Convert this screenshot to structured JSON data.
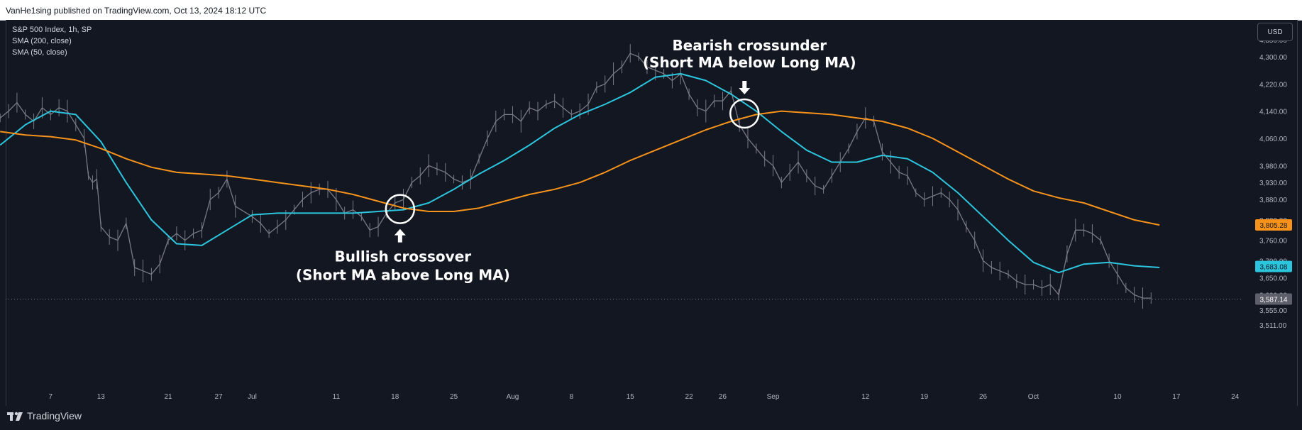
{
  "header": {
    "published": "VanHe1sing published on TradingView.com, Oct 13, 2024 18:12 UTC"
  },
  "legend": {
    "symbol": "S&P 500 Index, 1h, SP",
    "sma_long": "SMA (200, close)",
    "sma_short": "SMA (50, close)"
  },
  "currency_button": "USD",
  "brand": {
    "logo_icon": "tradingview-logo-icon",
    "name": "TradingView"
  },
  "annotations": {
    "bullish_line1": "Bullish crossover",
    "bullish_line2": "(Short MA above Long MA)",
    "bearish_line1": "Bearish crossunder",
    "bearish_line2": "(Short MA below Long MA)"
  },
  "chart_data": {
    "type": "line",
    "y_axis_side": "right",
    "y_ticks": [
      4350,
      4300,
      4220,
      4140,
      4060,
      3980,
      3930,
      3880,
      3820,
      3760,
      3700,
      3650,
      3600,
      3555,
      3511
    ],
    "y_tick_labels": [
      "4,350.00",
      "4,300.00",
      "4,220.00",
      "4,140.00",
      "4,060.00",
      "3,980.00",
      "3,930.00",
      "3,880.00",
      "3,820.00",
      "3,760.00",
      "3,700.00",
      "3,650.00",
      "3,600.00",
      "3,555.00",
      "3,511.00"
    ],
    "x_ticks": [
      {
        "d": 7,
        "label": "7"
      },
      {
        "d": 13,
        "label": "13"
      },
      {
        "d": 21,
        "label": "21"
      },
      {
        "d": 27,
        "label": "27"
      },
      {
        "d": 31,
        "label": "Jul"
      },
      {
        "d": 41,
        "label": "11"
      },
      {
        "d": 48,
        "label": "18"
      },
      {
        "d": 55,
        "label": "25"
      },
      {
        "d": 62,
        "label": "Aug"
      },
      {
        "d": 69,
        "label": "8"
      },
      {
        "d": 76,
        "label": "15"
      },
      {
        "d": 83,
        "label": "22"
      },
      {
        "d": 87,
        "label": "26"
      },
      {
        "d": 93,
        "label": "Sep"
      },
      {
        "d": 104,
        "label": "12"
      },
      {
        "d": 111,
        "label": "19"
      },
      {
        "d": 118,
        "label": "26"
      },
      {
        "d": 124,
        "label": "Oct"
      },
      {
        "d": 134,
        "label": "10"
      },
      {
        "d": 141,
        "label": "17"
      },
      {
        "d": 148,
        "label": "24"
      }
    ],
    "price_series": {
      "name": "S&P 500 Index, 1h, SP",
      "color": "#b2b5be",
      "points": [
        [
          1,
          4120
        ],
        [
          2,
          4140
        ],
        [
          3,
          4165
        ],
        [
          4,
          4130
        ],
        [
          5,
          4110
        ],
        [
          6,
          4150
        ],
        [
          7,
          4130
        ],
        [
          8,
          4150
        ],
        [
          9,
          4140
        ],
        [
          10,
          4100
        ],
        [
          11,
          4060
        ],
        [
          11.5,
          3950
        ],
        [
          12,
          3930
        ],
        [
          12.5,
          3940
        ],
        [
          13,
          3800
        ],
        [
          14,
          3770
        ],
        [
          15,
          3760
        ],
        [
          16,
          3810
        ],
        [
          17,
          3680
        ],
        [
          18,
          3670
        ],
        [
          19,
          3660
        ],
        [
          20,
          3690
        ],
        [
          21,
          3760
        ],
        [
          22,
          3780
        ],
        [
          23,
          3760
        ],
        [
          24,
          3780
        ],
        [
          25,
          3790
        ],
        [
          26,
          3880
        ],
        [
          27,
          3900
        ],
        [
          28,
          3940
        ],
        [
          29,
          3860
        ],
        [
          31,
          3830
        ],
        [
          32,
          3810
        ],
        [
          33,
          3780
        ],
        [
          34,
          3800
        ],
        [
          35,
          3820
        ],
        [
          36,
          3850
        ],
        [
          37,
          3880
        ],
        [
          38,
          3900
        ],
        [
          39,
          3910
        ],
        [
          40,
          3910
        ],
        [
          41,
          3880
        ],
        [
          42,
          3840
        ],
        [
          43,
          3850
        ],
        [
          44,
          3830
        ],
        [
          45,
          3790
        ],
        [
          46,
          3800
        ],
        [
          47,
          3840
        ],
        [
          48,
          3870
        ],
        [
          49,
          3880
        ],
        [
          50,
          3930
        ],
        [
          51,
          3950
        ],
        [
          52,
          3980
        ],
        [
          53,
          3970
        ],
        [
          54,
          3960
        ],
        [
          55,
          3940
        ],
        [
          56,
          3930
        ],
        [
          57,
          3940
        ],
        [
          58,
          4000
        ],
        [
          59,
          4060
        ],
        [
          60,
          4110
        ],
        [
          61,
          4130
        ],
        [
          62,
          4130
        ],
        [
          63,
          4110
        ],
        [
          64,
          4150
        ],
        [
          65,
          4140
        ],
        [
          66,
          4160
        ],
        [
          67,
          4170
        ],
        [
          68,
          4150
        ],
        [
          69,
          4130
        ],
        [
          70,
          4140
        ],
        [
          71,
          4160
        ],
        [
          72,
          4210
        ],
        [
          73,
          4220
        ],
        [
          74,
          4250
        ],
        [
          75,
          4270
        ],
        [
          76,
          4310
        ],
        [
          77,
          4300
        ],
        [
          78,
          4270
        ],
        [
          79,
          4260
        ],
        [
          80,
          4250
        ],
        [
          81,
          4230
        ],
        [
          82,
          4250
        ],
        [
          83,
          4190
        ],
        [
          84,
          4150
        ],
        [
          85,
          4140
        ],
        [
          86,
          4170
        ],
        [
          87,
          4170
        ],
        [
          88,
          4200
        ],
        [
          89,
          4100
        ],
        [
          90,
          4060
        ],
        [
          91,
          4030
        ],
        [
          92,
          4000
        ],
        [
          93,
          3980
        ],
        [
          94,
          3930
        ],
        [
          95,
          3960
        ],
        [
          96,
          3990
        ],
        [
          97,
          3950
        ],
        [
          98,
          3920
        ],
        [
          99,
          3910
        ],
        [
          100,
          3950
        ],
        [
          101,
          3990
        ],
        [
          102,
          4030
        ],
        [
          103,
          4080
        ],
        [
          104,
          4120
        ],
        [
          105,
          4110
        ],
        [
          106,
          4020
        ],
        [
          107,
          3990
        ],
        [
          108,
          3960
        ],
        [
          109,
          3950
        ],
        [
          110,
          3900
        ],
        [
          111,
          3880
        ],
        [
          112,
          3890
        ],
        [
          113,
          3900
        ],
        [
          114,
          3880
        ],
        [
          115,
          3850
        ],
        [
          116,
          3800
        ],
        [
          117,
          3760
        ],
        [
          118,
          3700
        ],
        [
          119,
          3680
        ],
        [
          120,
          3670
        ],
        [
          121,
          3660
        ],
        [
          122,
          3640
        ],
        [
          123,
          3630
        ],
        [
          124,
          3630
        ],
        [
          125,
          3620
        ],
        [
          126,
          3630
        ],
        [
          127,
          3600
        ],
        [
          128,
          3720
        ],
        [
          129,
          3790
        ],
        [
          130,
          3790
        ],
        [
          131,
          3780
        ],
        [
          132,
          3760
        ],
        [
          133,
          3700
        ],
        [
          134,
          3660
        ],
        [
          135,
          3620
        ],
        [
          136,
          3600
        ],
        [
          137,
          3590
        ],
        [
          138,
          3590
        ]
      ]
    },
    "series": [
      {
        "name": "SMA (50, close)",
        "color": "#2bc6de",
        "last_value": 3683.08,
        "points": [
          [
            1,
            4040
          ],
          [
            4,
            4100
          ],
          [
            7,
            4140
          ],
          [
            10,
            4130
          ],
          [
            13,
            4050
          ],
          [
            16,
            3930
          ],
          [
            19,
            3820
          ],
          [
            22,
            3750
          ],
          [
            25,
            3745
          ],
          [
            28,
            3790
          ],
          [
            31,
            3835
          ],
          [
            34,
            3840
          ],
          [
            37,
            3840
          ],
          [
            40,
            3840
          ],
          [
            43,
            3840
          ],
          [
            46,
            3845
          ],
          [
            49,
            3850
          ],
          [
            52,
            3870
          ],
          [
            55,
            3910
          ],
          [
            58,
            3955
          ],
          [
            61,
            3995
          ],
          [
            64,
            4040
          ],
          [
            67,
            4090
          ],
          [
            70,
            4130
          ],
          [
            73,
            4160
          ],
          [
            76,
            4195
          ],
          [
            79,
            4240
          ],
          [
            82,
            4250
          ],
          [
            85,
            4230
          ],
          [
            88,
            4190
          ],
          [
            91,
            4140
          ],
          [
            94,
            4080
          ],
          [
            97,
            4025
          ],
          [
            100,
            3990
          ],
          [
            103,
            3990
          ],
          [
            106,
            4010
          ],
          [
            109,
            4000
          ],
          [
            112,
            3960
          ],
          [
            115,
            3900
          ],
          [
            118,
            3830
          ],
          [
            121,
            3760
          ],
          [
            124,
            3695
          ],
          [
            127,
            3665
          ],
          [
            130,
            3690
          ],
          [
            133,
            3695
          ],
          [
            136,
            3685
          ],
          [
            139,
            3680
          ]
        ]
      },
      {
        "name": "SMA (200, close)",
        "color": "#f7931a",
        "last_value": 3805.28,
        "points": [
          [
            1,
            4080
          ],
          [
            4,
            4070
          ],
          [
            7,
            4065
          ],
          [
            10,
            4055
          ],
          [
            13,
            4030
          ],
          [
            16,
            4000
          ],
          [
            19,
            3975
          ],
          [
            22,
            3960
          ],
          [
            25,
            3955
          ],
          [
            28,
            3950
          ],
          [
            31,
            3940
          ],
          [
            34,
            3930
          ],
          [
            37,
            3920
          ],
          [
            40,
            3910
          ],
          [
            43,
            3895
          ],
          [
            46,
            3875
          ],
          [
            49,
            3855
          ],
          [
            52,
            3845
          ],
          [
            55,
            3845
          ],
          [
            58,
            3855
          ],
          [
            61,
            3875
          ],
          [
            64,
            3895
          ],
          [
            67,
            3910
          ],
          [
            70,
            3930
          ],
          [
            73,
            3960
          ],
          [
            76,
            3995
          ],
          [
            79,
            4025
          ],
          [
            82,
            4055
          ],
          [
            85,
            4085
          ],
          [
            88,
            4110
          ],
          [
            91,
            4130
          ],
          [
            94,
            4140
          ],
          [
            97,
            4135
          ],
          [
            100,
            4130
          ],
          [
            103,
            4120
          ],
          [
            106,
            4110
          ],
          [
            109,
            4090
          ],
          [
            112,
            4060
          ],
          [
            115,
            4020
          ],
          [
            118,
            3980
          ],
          [
            121,
            3940
          ],
          [
            124,
            3905
          ],
          [
            127,
            3885
          ],
          [
            130,
            3870
          ],
          [
            133,
            3845
          ],
          [
            136,
            3820
          ],
          [
            139,
            3805
          ]
        ]
      }
    ],
    "last_price": 3587.14,
    "last_labels": {
      "long_sma": "3,805.28",
      "short_sma": "3,683.08",
      "price": "3,587.14"
    },
    "colors": {
      "background": "#131722",
      "text": "#b2b5be",
      "price": "#787b86"
    },
    "grid": false,
    "xlabel": "",
    "ylabel": ""
  }
}
